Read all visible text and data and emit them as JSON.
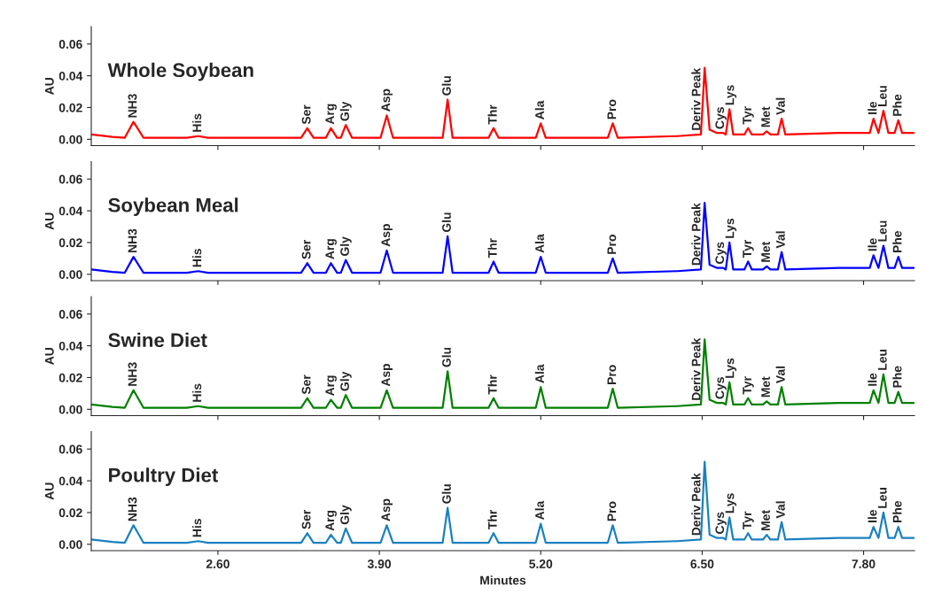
{
  "chart_data": [
    {
      "type": "line",
      "title": "Whole Soybean",
      "ylabel": "AU",
      "tick_labels": "y",
      "grid": false,
      "x": [
        1.58,
        1.75,
        1.85,
        1.92,
        2.0,
        2.35,
        2.44,
        2.52,
        3.0,
        3.27,
        3.32,
        3.37,
        3.47,
        3.51,
        3.56,
        3.59,
        3.63,
        3.68,
        3.91,
        3.96,
        4.01,
        4.41,
        4.45,
        4.49,
        4.78,
        4.82,
        4.86,
        5.16,
        5.2,
        5.24,
        5.74,
        5.78,
        5.82,
        6.3,
        6.49,
        6.52,
        6.56,
        6.62,
        6.67,
        6.69,
        6.72,
        6.75,
        6.84,
        6.87,
        6.9,
        6.99,
        7.02,
        7.05,
        7.11,
        7.14,
        7.17,
        7.6,
        7.85,
        7.88,
        7.92,
        7.96,
        8.0,
        8.05,
        8.08,
        8.11,
        8.21
      ],
      "series": [
        {
          "color": "#ff0000",
          "values": [
            0.003,
            0.0015,
            0.001,
            0.011,
            0.001,
            0.001,
            0.002,
            0.001,
            0.001,
            0.001,
            0.007,
            0.001,
            0.001,
            0.007,
            0.001,
            0.001,
            0.009,
            0.001,
            0.001,
            0.015,
            0.001,
            0.001,
            0.025,
            0.001,
            0.001,
            0.007,
            0.001,
            0.001,
            0.01,
            0.001,
            0.001,
            0.01,
            0.001,
            0.002,
            0.003,
            0.045,
            0.006,
            0.004,
            0.004,
            0.003,
            0.019,
            0.003,
            0.003,
            0.007,
            0.003,
            0.003,
            0.005,
            0.003,
            0.003,
            0.013,
            0.003,
            0.004,
            0.004,
            0.013,
            0.004,
            0.018,
            0.004,
            0.004,
            0.012,
            0.004,
            0.004
          ]
        }
      ],
      "xlim": [
        1.58,
        8.21
      ],
      "ylim": [
        -0.004,
        0.071
      ],
      "yticks": [
        {
          "value": 0,
          "label": "0.00"
        },
        {
          "value": 0.02,
          "label": "0.02"
        },
        {
          "value": 0.04,
          "label": "0.04"
        },
        {
          "value": 0.06,
          "label": "0.06"
        }
      ],
      "annotations": [
        {
          "text": "NH3",
          "x": 1.92,
          "y": 0.011
        },
        {
          "text": "His",
          "x": 2.44,
          "y": 0.002
        },
        {
          "text": "Ser",
          "x": 3.32,
          "y": 0.007
        },
        {
          "text": "Arg",
          "x": 3.51,
          "y": 0.007
        },
        {
          "text": "Gly",
          "x": 3.63,
          "y": 0.009
        },
        {
          "text": "Asp",
          "x": 3.96,
          "y": 0.015
        },
        {
          "text": "Glu",
          "x": 4.45,
          "y": 0.025
        },
        {
          "text": "Thr",
          "x": 4.82,
          "y": 0.007
        },
        {
          "text": "Ala",
          "x": 5.2,
          "y": 0.01
        },
        {
          "text": "Pro",
          "x": 5.78,
          "y": 0.01
        },
        {
          "text": "Deriv Peak",
          "x": 6.46,
          "y": 0.003
        },
        {
          "text": "Cys",
          "x": 6.65,
          "y": 0.004
        },
        {
          "text": "Lys",
          "x": 6.73,
          "y": 0.019
        },
        {
          "text": "Tyr",
          "x": 6.87,
          "y": 0.007
        },
        {
          "text": "Met",
          "x": 7.02,
          "y": 0.005
        },
        {
          "text": "Val",
          "x": 7.14,
          "y": 0.013
        },
        {
          "text": "Ile",
          "x": 7.88,
          "y": 0.013
        },
        {
          "text": "Leu",
          "x": 7.96,
          "y": 0.018
        },
        {
          "text": "Phe",
          "x": 8.08,
          "y": 0.012
        }
      ]
    },
    {
      "type": "line",
      "title": "Soybean Meal",
      "ylabel": "AU",
      "tick_labels": "y",
      "grid": false,
      "x": [
        1.58,
        1.75,
        1.85,
        1.92,
        2.0,
        2.35,
        2.44,
        2.52,
        3.0,
        3.27,
        3.32,
        3.37,
        3.47,
        3.51,
        3.56,
        3.59,
        3.63,
        3.68,
        3.91,
        3.96,
        4.01,
        4.41,
        4.45,
        4.49,
        4.78,
        4.82,
        4.86,
        5.16,
        5.2,
        5.24,
        5.74,
        5.78,
        5.82,
        6.3,
        6.49,
        6.52,
        6.56,
        6.62,
        6.67,
        6.69,
        6.72,
        6.75,
        6.84,
        6.87,
        6.9,
        6.99,
        7.02,
        7.05,
        7.11,
        7.14,
        7.17,
        7.6,
        7.85,
        7.88,
        7.92,
        7.96,
        8.0,
        8.05,
        8.08,
        8.11,
        8.21
      ],
      "series": [
        {
          "color": "#0000ff",
          "values": [
            0.003,
            0.0015,
            0.001,
            0.011,
            0.001,
            0.001,
            0.002,
            0.001,
            0.001,
            0.001,
            0.007,
            0.001,
            0.001,
            0.007,
            0.001,
            0.001,
            0.009,
            0.001,
            0.001,
            0.015,
            0.001,
            0.001,
            0.024,
            0.001,
            0.001,
            0.008,
            0.001,
            0.001,
            0.011,
            0.001,
            0.001,
            0.01,
            0.001,
            0.002,
            0.003,
            0.045,
            0.006,
            0.004,
            0.004,
            0.003,
            0.02,
            0.003,
            0.003,
            0.008,
            0.003,
            0.003,
            0.005,
            0.003,
            0.003,
            0.014,
            0.003,
            0.004,
            0.004,
            0.012,
            0.004,
            0.018,
            0.004,
            0.004,
            0.011,
            0.004,
            0.004
          ]
        }
      ],
      "xlim": [
        1.58,
        8.21
      ],
      "ylim": [
        -0.004,
        0.071
      ],
      "yticks": [
        {
          "value": 0,
          "label": "0.00"
        },
        {
          "value": 0.02,
          "label": "0.02"
        },
        {
          "value": 0.04,
          "label": "0.04"
        },
        {
          "value": 0.06,
          "label": "0.06"
        }
      ],
      "annotations": [
        {
          "text": "NH3",
          "x": 1.92,
          "y": 0.011
        },
        {
          "text": "His",
          "x": 2.44,
          "y": 0.002
        },
        {
          "text": "Ser",
          "x": 3.32,
          "y": 0.007
        },
        {
          "text": "Arg",
          "x": 3.51,
          "y": 0.007
        },
        {
          "text": "Gly",
          "x": 3.63,
          "y": 0.009
        },
        {
          "text": "Asp",
          "x": 3.96,
          "y": 0.015
        },
        {
          "text": "Glu",
          "x": 4.45,
          "y": 0.024
        },
        {
          "text": "Thr",
          "x": 4.82,
          "y": 0.008
        },
        {
          "text": "Ala",
          "x": 5.2,
          "y": 0.011
        },
        {
          "text": "Pro",
          "x": 5.78,
          "y": 0.01
        },
        {
          "text": "Deriv Peak",
          "x": 6.46,
          "y": 0.003
        },
        {
          "text": "Cys",
          "x": 6.65,
          "y": 0.004
        },
        {
          "text": "Lys",
          "x": 6.73,
          "y": 0.02
        },
        {
          "text": "Tyr",
          "x": 6.87,
          "y": 0.008
        },
        {
          "text": "Met",
          "x": 7.02,
          "y": 0.005
        },
        {
          "text": "Val",
          "x": 7.14,
          "y": 0.014
        },
        {
          "text": "Ile",
          "x": 7.88,
          "y": 0.012
        },
        {
          "text": "Leu",
          "x": 7.96,
          "y": 0.018
        },
        {
          "text": "Phe",
          "x": 8.08,
          "y": 0.011
        }
      ]
    },
    {
      "type": "line",
      "title": "Swine Diet",
      "ylabel": "AU",
      "tick_labels": "y",
      "grid": false,
      "x": [
        1.58,
        1.75,
        1.85,
        1.92,
        2.0,
        2.35,
        2.44,
        2.52,
        3.0,
        3.27,
        3.32,
        3.37,
        3.47,
        3.51,
        3.56,
        3.59,
        3.63,
        3.68,
        3.91,
        3.96,
        4.01,
        4.41,
        4.45,
        4.49,
        4.78,
        4.82,
        4.86,
        5.16,
        5.2,
        5.24,
        5.74,
        5.78,
        5.82,
        6.3,
        6.49,
        6.52,
        6.56,
        6.62,
        6.67,
        6.69,
        6.72,
        6.75,
        6.84,
        6.87,
        6.9,
        6.99,
        7.02,
        7.05,
        7.11,
        7.14,
        7.17,
        7.6,
        7.85,
        7.88,
        7.92,
        7.96,
        8.0,
        8.05,
        8.08,
        8.11,
        8.21
      ],
      "series": [
        {
          "color": "#008000",
          "values": [
            0.003,
            0.0015,
            0.001,
            0.012,
            0.001,
            0.001,
            0.002,
            0.001,
            0.001,
            0.001,
            0.007,
            0.001,
            0.001,
            0.006,
            0.001,
            0.001,
            0.009,
            0.001,
            0.001,
            0.012,
            0.001,
            0.001,
            0.024,
            0.001,
            0.001,
            0.007,
            0.001,
            0.001,
            0.014,
            0.001,
            0.001,
            0.013,
            0.001,
            0.002,
            0.003,
            0.044,
            0.006,
            0.004,
            0.004,
            0.003,
            0.017,
            0.003,
            0.003,
            0.007,
            0.003,
            0.003,
            0.005,
            0.003,
            0.003,
            0.014,
            0.003,
            0.004,
            0.004,
            0.012,
            0.004,
            0.022,
            0.004,
            0.004,
            0.011,
            0.004,
            0.004
          ]
        }
      ],
      "xlim": [
        1.58,
        8.21
      ],
      "ylim": [
        -0.004,
        0.071
      ],
      "yticks": [
        {
          "value": 0,
          "label": "0.00"
        },
        {
          "value": 0.02,
          "label": "0.02"
        },
        {
          "value": 0.04,
          "label": "0.04"
        },
        {
          "value": 0.06,
          "label": "0.06"
        }
      ],
      "annotations": [
        {
          "text": "NH3",
          "x": 1.92,
          "y": 0.012
        },
        {
          "text": "His",
          "x": 2.44,
          "y": 0.002
        },
        {
          "text": "Ser",
          "x": 3.32,
          "y": 0.007
        },
        {
          "text": "Arg",
          "x": 3.51,
          "y": 0.006
        },
        {
          "text": "Gly",
          "x": 3.63,
          "y": 0.009
        },
        {
          "text": "Asp",
          "x": 3.96,
          "y": 0.012
        },
        {
          "text": "Glu",
          "x": 4.45,
          "y": 0.024
        },
        {
          "text": "Thr",
          "x": 4.82,
          "y": 0.007
        },
        {
          "text": "Ala",
          "x": 5.2,
          "y": 0.014
        },
        {
          "text": "Pro",
          "x": 5.78,
          "y": 0.013
        },
        {
          "text": "Deriv Peak",
          "x": 6.46,
          "y": 0.003
        },
        {
          "text": "Cys",
          "x": 6.65,
          "y": 0.004
        },
        {
          "text": "Lys",
          "x": 6.73,
          "y": 0.017
        },
        {
          "text": "Tyr",
          "x": 6.87,
          "y": 0.007
        },
        {
          "text": "Met",
          "x": 7.02,
          "y": 0.005
        },
        {
          "text": "Val",
          "x": 7.14,
          "y": 0.014
        },
        {
          "text": "Ile",
          "x": 7.88,
          "y": 0.012
        },
        {
          "text": "Leu",
          "x": 7.96,
          "y": 0.022
        },
        {
          "text": "Phe",
          "x": 8.08,
          "y": 0.011
        }
      ]
    },
    {
      "type": "line",
      "title": "Poultry Diet",
      "ylabel": "AU",
      "xlabel": "Minutes",
      "grid": false,
      "x": [
        1.58,
        1.75,
        1.85,
        1.92,
        2.0,
        2.35,
        2.44,
        2.52,
        3.0,
        3.27,
        3.32,
        3.37,
        3.47,
        3.51,
        3.56,
        3.59,
        3.63,
        3.68,
        3.91,
        3.96,
        4.01,
        4.41,
        4.45,
        4.49,
        4.78,
        4.82,
        4.86,
        5.16,
        5.2,
        5.24,
        5.74,
        5.78,
        5.82,
        6.3,
        6.49,
        6.52,
        6.56,
        6.62,
        6.67,
        6.69,
        6.72,
        6.75,
        6.84,
        6.87,
        6.9,
        6.99,
        7.02,
        7.05,
        7.11,
        7.14,
        7.17,
        7.6,
        7.85,
        7.88,
        7.92,
        7.96,
        8.0,
        8.05,
        8.08,
        8.11,
        8.21
      ],
      "series": [
        {
          "color": "#1a80c0",
          "values": [
            0.003,
            0.0015,
            0.001,
            0.012,
            0.001,
            0.001,
            0.002,
            0.001,
            0.001,
            0.001,
            0.007,
            0.001,
            0.001,
            0.006,
            0.001,
            0.001,
            0.01,
            0.001,
            0.001,
            0.012,
            0.001,
            0.001,
            0.023,
            0.001,
            0.001,
            0.007,
            0.001,
            0.001,
            0.013,
            0.001,
            0.001,
            0.012,
            0.001,
            0.002,
            0.003,
            0.052,
            0.006,
            0.004,
            0.004,
            0.003,
            0.017,
            0.003,
            0.003,
            0.007,
            0.003,
            0.003,
            0.006,
            0.003,
            0.003,
            0.014,
            0.003,
            0.004,
            0.004,
            0.011,
            0.004,
            0.02,
            0.004,
            0.004,
            0.011,
            0.004,
            0.004
          ]
        }
      ],
      "xlim": [
        1.58,
        8.21
      ],
      "xticks": [
        {
          "value": 2.6,
          "label": "2.60"
        },
        {
          "value": 3.9,
          "label": "3.90"
        },
        {
          "value": 5.2,
          "label": "5.20"
        },
        {
          "value": 6.5,
          "label": "6.50"
        },
        {
          "value": 7.8,
          "label": "7.80"
        }
      ],
      "ylim": [
        -0.004,
        0.071
      ],
      "yticks": [
        {
          "value": 0,
          "label": "0.00"
        },
        {
          "value": 0.02,
          "label": "0.02"
        },
        {
          "value": 0.04,
          "label": "0.04"
        },
        {
          "value": 0.06,
          "label": "0.06"
        }
      ],
      "annotations": [
        {
          "text": "NH3",
          "x": 1.92,
          "y": 0.012
        },
        {
          "text": "His",
          "x": 2.44,
          "y": 0.002
        },
        {
          "text": "Ser",
          "x": 3.32,
          "y": 0.007
        },
        {
          "text": "Arg",
          "x": 3.51,
          "y": 0.006
        },
        {
          "text": "Gly",
          "x": 3.63,
          "y": 0.01
        },
        {
          "text": "Asp",
          "x": 3.96,
          "y": 0.012
        },
        {
          "text": "Glu",
          "x": 4.45,
          "y": 0.023
        },
        {
          "text": "Thr",
          "x": 4.82,
          "y": 0.007
        },
        {
          "text": "Ala",
          "x": 5.2,
          "y": 0.013
        },
        {
          "text": "Pro",
          "x": 5.78,
          "y": 0.012
        },
        {
          "text": "Deriv Peak",
          "x": 6.46,
          "y": 0.003
        },
        {
          "text": "Cys",
          "x": 6.65,
          "y": 0.004
        },
        {
          "text": "Lys",
          "x": 6.73,
          "y": 0.017
        },
        {
          "text": "Tyr",
          "x": 6.87,
          "y": 0.007
        },
        {
          "text": "Met",
          "x": 7.02,
          "y": 0.006
        },
        {
          "text": "Val",
          "x": 7.14,
          "y": 0.014
        },
        {
          "text": "Ile",
          "x": 7.88,
          "y": 0.011
        },
        {
          "text": "Leu",
          "x": 7.96,
          "y": 0.02
        },
        {
          "text": "Phe",
          "x": 8.08,
          "y": 0.011
        }
      ]
    }
  ]
}
